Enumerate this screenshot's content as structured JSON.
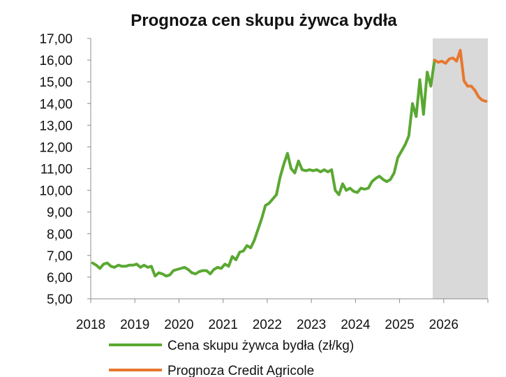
{
  "chart_data": {
    "type": "line",
    "title": "Prognoza cen skupu żywca bydła",
    "xlabel": "",
    "ylabel": "",
    "ylim": [
      5,
      17
    ],
    "xlim": [
      "2018-01",
      "2026-12"
    ],
    "grid": false,
    "legend_position": "bottom",
    "y_ticks": [
      "5,00",
      "6,00",
      "7,00",
      "8,00",
      "9,00",
      "10,00",
      "11,00",
      "12,00",
      "13,00",
      "14,00",
      "15,00",
      "16,00",
      "17,00"
    ],
    "x_ticks": [
      "2018",
      "2019",
      "2020",
      "2021",
      "2022",
      "2023",
      "2024",
      "2025",
      "2026"
    ],
    "shaded_region": {
      "from": "2025-10",
      "to": "2026-12",
      "color": "#d9d9d9"
    },
    "series": [
      {
        "name": "Cena skupu żywca bydła (zł/kg)",
        "color": "#5aa832",
        "points": [
          [
            "2018-01",
            6.65
          ],
          [
            "2018-02",
            6.55
          ],
          [
            "2018-03",
            6.4
          ],
          [
            "2018-04",
            6.6
          ],
          [
            "2018-05",
            6.65
          ],
          [
            "2018-06",
            6.5
          ],
          [
            "2018-07",
            6.45
          ],
          [
            "2018-08",
            6.55
          ],
          [
            "2018-09",
            6.5
          ],
          [
            "2018-10",
            6.5
          ],
          [
            "2018-11",
            6.55
          ],
          [
            "2018-12",
            6.55
          ],
          [
            "2019-01",
            6.6
          ],
          [
            "2019-02",
            6.45
          ],
          [
            "2019-03",
            6.55
          ],
          [
            "2019-04",
            6.45
          ],
          [
            "2019-05",
            6.5
          ],
          [
            "2019-06",
            6.05
          ],
          [
            "2019-07",
            6.2
          ],
          [
            "2019-08",
            6.15
          ],
          [
            "2019-09",
            6.05
          ],
          [
            "2019-10",
            6.1
          ],
          [
            "2019-11",
            6.3
          ],
          [
            "2019-12",
            6.35
          ],
          [
            "2020-01",
            6.4
          ],
          [
            "2020-02",
            6.45
          ],
          [
            "2020-03",
            6.35
          ],
          [
            "2020-04",
            6.2
          ],
          [
            "2020-05",
            6.15
          ],
          [
            "2020-06",
            6.25
          ],
          [
            "2020-07",
            6.3
          ],
          [
            "2020-08",
            6.3
          ],
          [
            "2020-09",
            6.15
          ],
          [
            "2020-10",
            6.35
          ],
          [
            "2020-11",
            6.45
          ],
          [
            "2020-12",
            6.4
          ],
          [
            "2021-01",
            6.6
          ],
          [
            "2021-02",
            6.5
          ],
          [
            "2021-03",
            6.95
          ],
          [
            "2021-04",
            6.8
          ],
          [
            "2021-05",
            7.15
          ],
          [
            "2021-06",
            7.2
          ],
          [
            "2021-07",
            7.45
          ],
          [
            "2021-08",
            7.35
          ],
          [
            "2021-09",
            7.7
          ],
          [
            "2021-10",
            8.2
          ],
          [
            "2021-11",
            8.7
          ],
          [
            "2021-12",
            9.3
          ],
          [
            "2022-01",
            9.4
          ],
          [
            "2022-02",
            9.6
          ],
          [
            "2022-03",
            9.8
          ],
          [
            "2022-04",
            10.6
          ],
          [
            "2022-05",
            11.2
          ],
          [
            "2022-06",
            11.7
          ],
          [
            "2022-07",
            11.0
          ],
          [
            "2022-08",
            10.8
          ],
          [
            "2022-09",
            11.35
          ],
          [
            "2022-10",
            10.95
          ],
          [
            "2022-11",
            10.9
          ],
          [
            "2022-12",
            10.95
          ],
          [
            "2023-01",
            10.9
          ],
          [
            "2023-02",
            10.95
          ],
          [
            "2023-03",
            10.85
          ],
          [
            "2023-04",
            10.95
          ],
          [
            "2023-05",
            10.85
          ],
          [
            "2023-06",
            10.95
          ],
          [
            "2023-07",
            10.0
          ],
          [
            "2023-08",
            9.8
          ],
          [
            "2023-09",
            10.3
          ],
          [
            "2023-10",
            10.0
          ],
          [
            "2023-11",
            10.1
          ],
          [
            "2023-12",
            9.95
          ],
          [
            "2024-01",
            9.9
          ],
          [
            "2024-02",
            10.1
          ],
          [
            "2024-03",
            10.05
          ],
          [
            "2024-04",
            10.1
          ],
          [
            "2024-05",
            10.4
          ],
          [
            "2024-06",
            10.55
          ],
          [
            "2024-07",
            10.65
          ],
          [
            "2024-08",
            10.5
          ],
          [
            "2024-09",
            10.4
          ],
          [
            "2024-10",
            10.5
          ],
          [
            "2024-11",
            10.8
          ],
          [
            "2024-12",
            11.5
          ],
          [
            "2025-01",
            11.8
          ],
          [
            "2025-02",
            12.1
          ],
          [
            "2025-03",
            12.5
          ],
          [
            "2025-04",
            14.0
          ],
          [
            "2025-05",
            13.4
          ],
          [
            "2025-06",
            15.1
          ],
          [
            "2025-07",
            13.5
          ],
          [
            "2025-08",
            15.45
          ],
          [
            "2025-09",
            14.8
          ],
          [
            "2025-10",
            16.0
          ]
        ]
      },
      {
        "name": "Prognoza Credit Agricole",
        "color": "#e8772e",
        "points": [
          [
            "2025-10",
            16.0
          ],
          [
            "2025-11",
            15.9
          ],
          [
            "2025-12",
            15.95
          ],
          [
            "2026-01",
            15.85
          ],
          [
            "2026-02",
            16.05
          ],
          [
            "2026-03",
            16.1
          ],
          [
            "2026-04",
            15.95
          ],
          [
            "2026-05",
            16.45
          ],
          [
            "2026-06",
            15.05
          ],
          [
            "2026-07",
            14.8
          ],
          [
            "2026-08",
            14.8
          ],
          [
            "2026-09",
            14.6
          ],
          [
            "2026-10",
            14.3
          ],
          [
            "2026-11",
            14.15
          ],
          [
            "2026-12",
            14.1
          ]
        ]
      }
    ]
  }
}
